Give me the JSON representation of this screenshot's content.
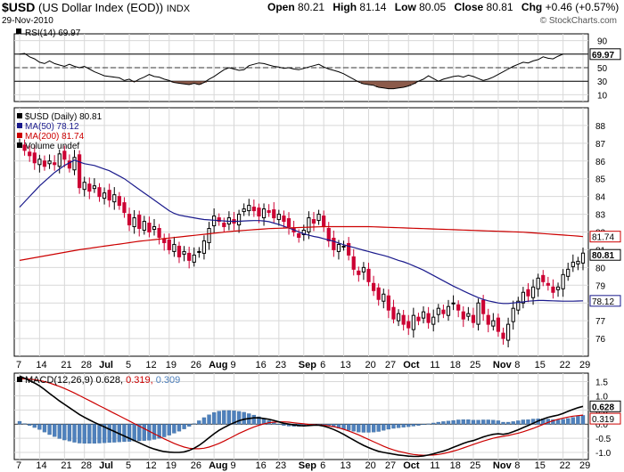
{
  "header": {
    "symbol": "$USD",
    "name": "(US Dollar Index (EOD))",
    "exchange": "INDX",
    "date": "29-Nov-2010",
    "open_label": "Open",
    "open": "80.21",
    "high_label": "High",
    "high": "81.14",
    "low_label": "Low",
    "low": "80.05",
    "close_label": "Close",
    "close": "80.81",
    "chg_label": "Chg",
    "chg": "+0.46 (+0.57%)",
    "brand": "© StockCharts.com"
  },
  "colors": {
    "up": "#000000",
    "down": "#cc0033",
    "ma50": "#1a1a8c",
    "ma200": "#cc0000",
    "macd": "#000000",
    "signal": "#cc0000",
    "hist": "#4f81bd",
    "rsi_fill": "#8b5a4a",
    "grid": "#d8d8d8"
  },
  "chart_data": [
    {
      "type": "line",
      "panel": "RSI",
      "legend": "RSI(14) 69.97",
      "ylim": [
        0,
        100
      ],
      "yticks": [
        10,
        30,
        50,
        70,
        90
      ],
      "reference_lines": [
        30,
        50,
        70
      ],
      "last_value_tag": "69.97",
      "values": [
        70,
        71,
        66,
        63,
        58,
        56,
        60,
        56,
        54,
        52,
        55,
        52,
        50,
        52,
        48,
        44,
        41,
        38,
        37,
        36,
        35,
        31,
        33,
        29,
        33,
        36,
        40,
        37,
        36,
        33,
        31,
        28,
        27,
        26,
        25,
        27,
        25,
        28,
        33,
        37,
        42,
        47,
        50,
        48,
        46,
        47,
        53,
        55,
        57,
        56,
        54,
        52,
        51,
        49,
        50,
        48,
        47,
        49,
        51,
        53,
        55,
        51,
        48,
        46,
        44,
        41,
        37,
        33,
        29,
        26,
        25,
        24,
        21,
        20,
        19,
        19,
        20,
        21,
        23,
        26,
        30,
        33,
        38,
        34,
        30,
        33,
        35,
        37,
        38,
        36,
        39,
        37,
        34,
        31,
        33,
        36,
        40,
        44,
        48,
        52,
        55,
        58,
        57,
        60,
        62,
        66,
        64,
        63,
        67,
        70
      ]
    },
    {
      "type": "candlestick",
      "panel": "Price",
      "legend": [
        "$USD (Daily) 80.81",
        "MA(50) 78.12",
        "MA(200) 81.74",
        "Volume undef"
      ],
      "ylim": [
        75,
        89
      ],
      "yticks": [
        76,
        77,
        78,
        79,
        80,
        81,
        82,
        83,
        84,
        85,
        86,
        87,
        88
      ],
      "ytick_labels": [
        "76",
        "77",
        "78",
        "79",
        "80",
        "81",
        "82",
        "83",
        "84",
        "85",
        "86",
        "87",
        "88"
      ],
      "x_tick_labels": [
        "7",
        "14",
        "21",
        "28",
        "Jul",
        "5",
        "12",
        "19",
        "26",
        "Aug",
        "9",
        "16",
        "23",
        "Sep",
        "6",
        "13",
        "20",
        "27",
        "Oct",
        "11",
        "18",
        "25",
        "Nov",
        "8",
        "15",
        "22",
        "29"
      ],
      "close": [
        87.0,
        86.6,
        86.3,
        85.9,
        86.1,
        85.7,
        86.0,
        85.8,
        86.4,
        86.1,
        85.6,
        86.2,
        84.5,
        84.8,
        84.3,
        84.6,
        84.0,
        84.2,
        83.8,
        84.1,
        83.5,
        83.1,
        82.4,
        82.8,
        82.2,
        82.6,
        82.0,
        82.3,
        81.7,
        81.4,
        81.0,
        81.3,
        80.6,
        80.9,
        80.4,
        80.7,
        80.9,
        81.5,
        82.2,
        82.9,
        82.6,
        82.3,
        82.8,
        82.5,
        83.0,
        83.3,
        83.5,
        83.2,
        82.9,
        83.3,
        83.1,
        82.8,
        83.0,
        82.6,
        82.3,
        82.0,
        81.7,
        82.1,
        82.8,
        82.5,
        83.0,
        82.3,
        81.5,
        81.0,
        81.3,
        81.2,
        80.7,
        79.9,
        79.6,
        80.0,
        79.2,
        78.7,
        78.2,
        78.5,
        77.6,
        77.1,
        77.4,
        76.8,
        76.6,
        77.3,
        77.0,
        77.5,
        76.9,
        77.2,
        77.7,
        77.4,
        77.8,
        78.0,
        77.6,
        77.1,
        77.4,
        76.9,
        78.0,
        77.4,
        76.8,
        77.0,
        76.4,
        76.0,
        76.8,
        77.7,
        78.1,
        78.6,
        78.4,
        78.9,
        79.4,
        79.2,
        79.0,
        78.6,
        78.9,
        79.6,
        79.9,
        80.3,
        80.35,
        80.81
      ],
      "ma50": [
        83.4,
        83.7,
        84.0,
        84.3,
        84.6,
        84.85,
        85.1,
        85.35,
        85.55,
        85.75,
        85.9,
        86.05,
        85.95,
        85.85,
        85.8,
        85.75,
        85.65,
        85.55,
        85.45,
        85.3,
        85.15,
        85.0,
        84.8,
        84.6,
        84.4,
        84.2,
        84.0,
        83.8,
        83.6,
        83.4,
        83.2,
        83.05,
        82.95,
        82.9,
        82.85,
        82.8,
        82.75,
        82.7,
        82.68,
        82.66,
        82.64,
        82.62,
        82.6,
        82.6,
        82.6,
        82.62,
        82.63,
        82.64,
        82.64,
        82.62,
        82.58,
        82.5,
        82.42,
        82.32,
        82.22,
        82.12,
        82.0,
        81.9,
        81.82,
        81.75,
        81.7,
        81.62,
        81.55,
        81.48,
        81.38,
        81.28,
        81.2,
        81.13,
        81.05,
        80.97,
        80.9,
        80.82,
        80.75,
        80.68,
        80.6,
        80.5,
        80.4,
        80.32,
        80.22,
        80.1,
        79.98,
        79.85,
        79.7,
        79.55,
        79.4,
        79.25,
        79.1,
        78.95,
        78.82,
        78.68,
        78.55,
        78.42,
        78.3,
        78.2,
        78.12,
        78.06,
        78.0,
        77.97,
        77.97,
        78.0,
        78.03,
        78.06,
        78.1,
        78.12,
        78.14,
        78.14,
        78.13,
        78.12,
        78.11,
        78.1,
        78.1,
        78.1,
        78.11,
        78.12
      ],
      "ma200": [
        80.4,
        80.45,
        80.5,
        80.55,
        80.6,
        80.65,
        80.7,
        80.75,
        80.8,
        80.85,
        80.9,
        80.95,
        81.0,
        81.04,
        81.08,
        81.12,
        81.16,
        81.2,
        81.24,
        81.28,
        81.32,
        81.36,
        81.4,
        81.44,
        81.48,
        81.51,
        81.54,
        81.57,
        81.6,
        81.63,
        81.66,
        81.69,
        81.72,
        81.75,
        81.78,
        81.81,
        81.84,
        81.87,
        81.9,
        81.93,
        81.96,
        81.99,
        82.02,
        82.05,
        82.07,
        82.09,
        82.11,
        82.13,
        82.15,
        82.17,
        82.19,
        82.2,
        82.21,
        82.22,
        82.23,
        82.24,
        82.25,
        82.26,
        82.27,
        82.28,
        82.29,
        82.3,
        82.3,
        82.3,
        82.3,
        82.3,
        82.3,
        82.3,
        82.3,
        82.3,
        82.3,
        82.29,
        82.28,
        82.27,
        82.26,
        82.25,
        82.24,
        82.23,
        82.22,
        82.21,
        82.2,
        82.19,
        82.18,
        82.17,
        82.16,
        82.15,
        82.14,
        82.13,
        82.12,
        82.11,
        82.1,
        82.09,
        82.08,
        82.07,
        82.06,
        82.05,
        82.04,
        82.03,
        82.02,
        82.01,
        82.0,
        81.99,
        81.97,
        81.95,
        81.93,
        81.91,
        81.89,
        81.87,
        81.85,
        81.83,
        81.81,
        81.79,
        81.77,
        81.74
      ],
      "last_value_tags": [
        "81.74",
        "80.81",
        "78.12"
      ]
    },
    {
      "type": "line",
      "panel": "MACD",
      "legend": [
        "MACD(12,26,9)",
        "0.628",
        "0.319",
        "0.309"
      ],
      "ylim": [
        -1.25,
        1.8
      ],
      "yticks": [
        -1.0,
        -0.5,
        0.0,
        0.5,
        1.0,
        1.5
      ],
      "ytick_labels": [
        "-1.0",
        "-0.5",
        "0.0",
        "0.5",
        "1.0",
        "1.5"
      ],
      "x_tick_labels": [
        "7",
        "14",
        "21",
        "28",
        "Jul",
        "5",
        "12",
        "19",
        "26",
        "Aug",
        "9",
        "16",
        "23",
        "Sep",
        "6",
        "13",
        "20",
        "27",
        "Oct",
        "11",
        "18",
        "25",
        "Nov",
        "8",
        "15",
        "22",
        "29"
      ],
      "macd": [
        1.7,
        1.62,
        1.54,
        1.45,
        1.35,
        1.22,
        1.08,
        0.95,
        0.82,
        0.7,
        0.58,
        0.46,
        0.34,
        0.24,
        0.15,
        0.06,
        -0.02,
        -0.1,
        -0.18,
        -0.26,
        -0.34,
        -0.42,
        -0.5,
        -0.58,
        -0.66,
        -0.74,
        -0.82,
        -0.88,
        -0.93,
        -0.97,
        -0.99,
        -1.0,
        -1.0,
        -0.98,
        -0.93,
        -0.85,
        -0.75,
        -0.62,
        -0.48,
        -0.34,
        -0.22,
        -0.12,
        -0.03,
        0.05,
        0.12,
        0.17,
        0.2,
        0.22,
        0.22,
        0.2,
        0.17,
        0.13,
        0.08,
        0.03,
        0.0,
        -0.03,
        -0.05,
        -0.06,
        -0.05,
        -0.04,
        -0.04,
        -0.07,
        -0.12,
        -0.19,
        -0.27,
        -0.36,
        -0.46,
        -0.56,
        -0.66,
        -0.75,
        -0.83,
        -0.9,
        -0.96,
        -1.0,
        -1.03,
        -1.06,
        -1.09,
        -1.11,
        -1.13,
        -1.14,
        -1.14,
        -1.12,
        -1.09,
        -1.05,
        -1.0,
        -0.95,
        -0.89,
        -0.82,
        -0.75,
        -0.68,
        -0.62,
        -0.58,
        -0.52,
        -0.45,
        -0.4,
        -0.36,
        -0.34,
        -0.36,
        -0.33,
        -0.27,
        -0.2,
        -0.12,
        -0.05,
        0.03,
        0.11,
        0.18,
        0.24,
        0.28,
        0.32,
        0.38,
        0.45,
        0.52,
        0.58,
        0.628
      ],
      "signal": [
        1.6,
        1.6,
        1.59,
        1.57,
        1.54,
        1.5,
        1.45,
        1.39,
        1.33,
        1.26,
        1.18,
        1.1,
        1.01,
        0.92,
        0.83,
        0.74,
        0.65,
        0.56,
        0.47,
        0.38,
        0.29,
        0.2,
        0.11,
        0.02,
        -0.07,
        -0.16,
        -0.25,
        -0.34,
        -0.43,
        -0.52,
        -0.6,
        -0.68,
        -0.75,
        -0.81,
        -0.85,
        -0.87,
        -0.87,
        -0.85,
        -0.81,
        -0.75,
        -0.68,
        -0.6,
        -0.51,
        -0.42,
        -0.33,
        -0.25,
        -0.17,
        -0.1,
        -0.04,
        0.01,
        0.05,
        0.07,
        0.08,
        0.08,
        0.07,
        0.05,
        0.03,
        0.01,
        -0.01,
        -0.02,
        -0.03,
        -0.04,
        -0.06,
        -0.09,
        -0.13,
        -0.18,
        -0.24,
        -0.31,
        -0.38,
        -0.46,
        -0.54,
        -0.62,
        -0.7,
        -0.78,
        -0.85,
        -0.91,
        -0.96,
        -1.0,
        -1.04,
        -1.07,
        -1.09,
        -1.1,
        -1.1,
        -1.09,
        -1.07,
        -1.04,
        -1.0,
        -0.95,
        -0.9,
        -0.84,
        -0.78,
        -0.72,
        -0.66,
        -0.6,
        -0.55,
        -0.5,
        -0.46,
        -0.43,
        -0.4,
        -0.36,
        -0.32,
        -0.27,
        -0.21,
        -0.15,
        -0.08,
        -0.01,
        0.06,
        0.12,
        0.17,
        0.21,
        0.25,
        0.28,
        0.3,
        0.319
      ],
      "last_value_tags": [
        "0.628",
        "0.319"
      ]
    }
  ]
}
